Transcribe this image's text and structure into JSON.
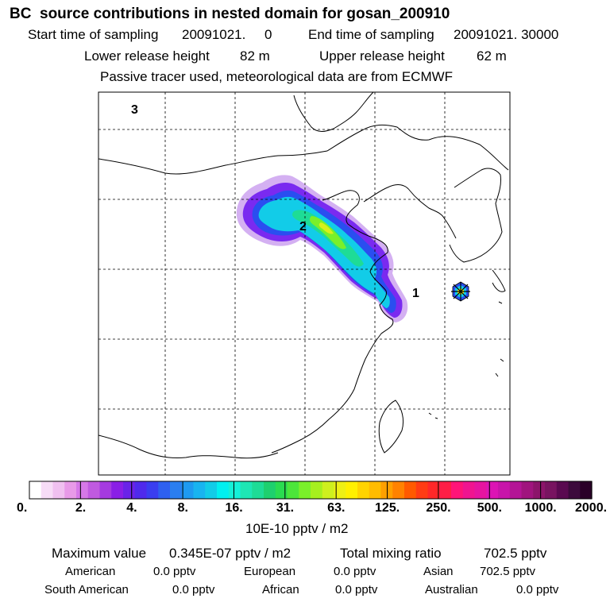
{
  "header": {
    "title": "BC  source contributions in nested domain for gosan_200910",
    "start_label": "Start time of sampling",
    "start_value": "20091021.     0",
    "end_label": "End time of sampling",
    "end_value": "20091021. 30000",
    "lower_label": "Lower release height",
    "lower_value": "82 m",
    "upper_label": "Upper release height",
    "upper_value": "62 m",
    "note": "Passive tracer used, meteorological data are from ECMWF"
  },
  "map": {
    "panel_number": "3",
    "source_labels": [
      "2",
      "1"
    ],
    "receptor": "Gosan station marker"
  },
  "colorbar": {
    "unit": "10E-10 pptv / m2",
    "tick_labels": [
      "0.",
      "2.",
      "4.",
      "8.",
      "16.",
      "31.",
      "63.",
      "125.",
      "250.",
      "500.",
      "1000.",
      "2000."
    ],
    "colors": [
      "#ffffff",
      "#f7dcf7",
      "#f0c0f0",
      "#e89ae8",
      "#d678e8",
      "#c05ae0",
      "#a53ae0",
      "#8a1fe6",
      "#6a23e8",
      "#4f2aec",
      "#3a3ef0",
      "#2e60f0",
      "#2a7ef0",
      "#1e9af0",
      "#18b4f0",
      "#12cce8",
      "#00f0f0",
      "#14f0d8",
      "#1ee6b4",
      "#1edc96",
      "#1ed06e",
      "#2adc50",
      "#4ce63a",
      "#7af02a",
      "#a6f01e",
      "#cef01e",
      "#eef014",
      "#fff000",
      "#ffd400",
      "#ffbc00",
      "#ffa000",
      "#ff8200",
      "#ff5a00",
      "#ff3c14",
      "#ff2828",
      "#ff1e46",
      "#ff1478",
      "#f01490",
      "#e614a0",
      "#dc14b4",
      "#c814aa",
      "#b41496",
      "#a0147e",
      "#8c146a",
      "#781460",
      "#5a0a50",
      "#3c0a3c",
      "#2a0028"
    ]
  },
  "stats": {
    "max_label": "Maximum value",
    "max_value": "0.345E-07 pptv / m2",
    "total_label": "Total mixing ratio",
    "total_value": "702.5 pptv",
    "american_label": "American",
    "american_value": "0.0 pptv",
    "european_label": "European",
    "european_value": "0.0 pptv",
    "asian_label": "Asian",
    "asian_value": "702.5 pptv",
    "southamerican_label": "South American",
    "southamerican_value": "0.0 pptv",
    "african_label": "African",
    "african_value": "0.0 pptv",
    "australian_label": "Australian",
    "australian_value": "0.0 pptv"
  }
}
